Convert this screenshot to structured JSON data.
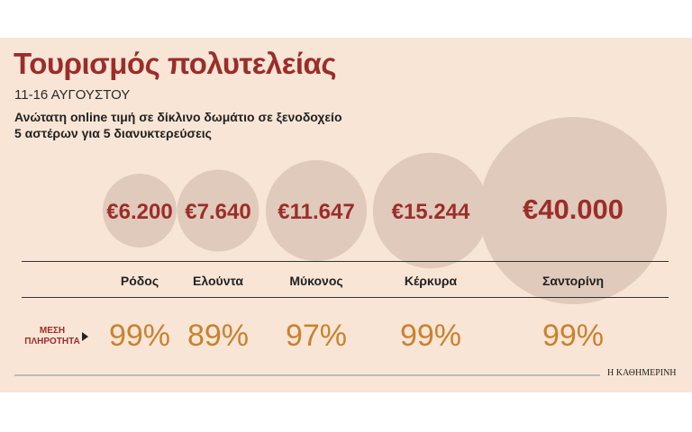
{
  "header": {
    "title": "Τουρισμός πολυτελείας",
    "date": "11-16 ΑΥΓΟΥΣΤΟΥ",
    "subtitle_line1": "Ανώτατη online τιμή σε δίκλινο δωμάτιο σε ξενοδοχείο",
    "subtitle_line2": "5 αστέρων για 5 διανυκτερεύσεις"
  },
  "occupancy_label_line1": "ΜΕΣΗ",
  "occupancy_label_line2": "ΠΛΗΡΟΤΗΤΑ",
  "source": "Η ΚΑΘΗΜΕΡΙΝΗ",
  "colors": {
    "background": "#f8e5d6",
    "bubble": "#e0cabb",
    "price_text": "#9b2d2a",
    "occupancy_text": "#c9822f",
    "title": "#9b2d2a"
  },
  "chart_data": {
    "type": "bubble",
    "title": "Τουρισμός πολυτελείας",
    "categories": [
      "Ρόδος",
      "Ελούντα",
      "Μύκονος",
      "Κέρκυρα",
      "Σαντορίνη"
    ],
    "series": [
      {
        "values": [
          6200,
          7640,
          11647,
          15244,
          40000
        ],
        "labels": [
          "€6.200",
          "€7.640",
          "€11.647",
          "€15.244",
          "€40.000"
        ]
      },
      {
        "values": [
          99,
          89,
          97,
          99,
          99
        ],
        "labels": [
          "99%",
          "89%",
          "97%",
          "99%",
          "99%"
        ]
      }
    ]
  }
}
